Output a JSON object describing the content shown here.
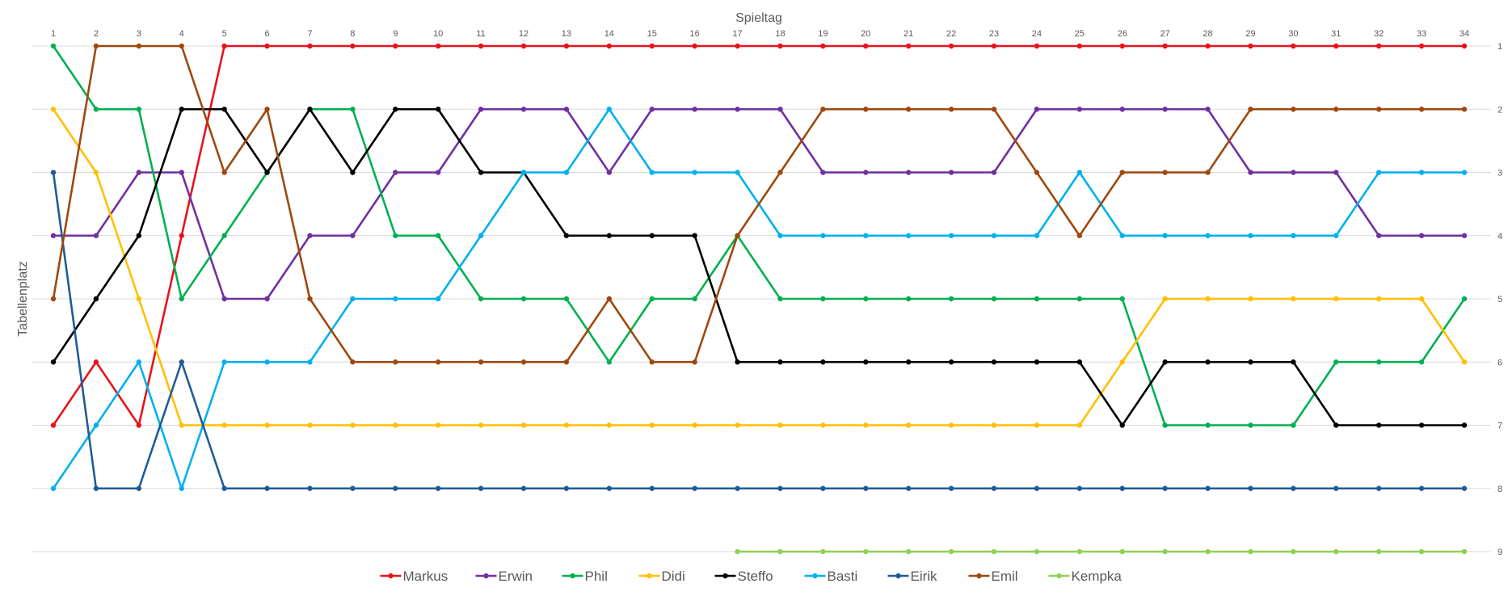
{
  "chart_data": {
    "type": "line",
    "title": "",
    "xlabel": "Spieltag",
    "ylabel": "Tabellenplatz",
    "x": [
      1,
      2,
      3,
      4,
      5,
      6,
      7,
      8,
      9,
      10,
      11,
      12,
      13,
      14,
      15,
      16,
      17,
      18,
      19,
      20,
      21,
      22,
      23,
      24,
      25,
      26,
      27,
      28,
      29,
      30,
      31,
      32,
      33,
      34
    ],
    "xlim": [
      1,
      34
    ],
    "ylim": [
      1,
      9
    ],
    "y_reversed": true,
    "x_axis_position": "top",
    "y_tick_position": "right",
    "grid": true,
    "legend_position": "bottom",
    "series": [
      {
        "name": "Markus",
        "color": "#e8121b",
        "values": [
          7,
          6,
          7,
          4,
          1,
          1,
          1,
          1,
          1,
          1,
          1,
          1,
          1,
          1,
          1,
          1,
          1,
          1,
          1,
          1,
          1,
          1,
          1,
          1,
          1,
          1,
          1,
          1,
          1,
          1,
          1,
          1,
          1,
          1
        ]
      },
      {
        "name": "Erwin",
        "color": "#7030a0",
        "values": [
          4,
          4,
          3,
          3,
          5,
          5,
          4,
          4,
          3,
          3,
          2,
          2,
          2,
          3,
          2,
          2,
          2,
          2,
          3,
          3,
          3,
          3,
          3,
          2,
          2,
          2,
          2,
          2,
          3,
          3,
          3,
          4,
          4,
          4
        ]
      },
      {
        "name": "Phil",
        "color": "#00b050",
        "values": [
          1,
          2,
          2,
          5,
          4,
          3,
          2,
          2,
          4,
          4,
          5,
          5,
          5,
          6,
          5,
          5,
          4,
          5,
          5,
          5,
          5,
          5,
          5,
          5,
          5,
          5,
          7,
          7,
          7,
          7,
          6,
          6,
          6,
          5
        ]
      },
      {
        "name": "Didi",
        "color": "#ffc000",
        "values": [
          2,
          3,
          5,
          7,
          7,
          7,
          7,
          7,
          7,
          7,
          7,
          7,
          7,
          7,
          7,
          7,
          7,
          7,
          7,
          7,
          7,
          7,
          7,
          7,
          7,
          6,
          5,
          5,
          5,
          5,
          5,
          5,
          5,
          6
        ]
      },
      {
        "name": "Steffo",
        "color": "#000000",
        "values": [
          6,
          5,
          4,
          2,
          2,
          3,
          2,
          3,
          2,
          2,
          3,
          3,
          4,
          4,
          4,
          4,
          6,
          6,
          6,
          6,
          6,
          6,
          6,
          6,
          6,
          7,
          6,
          6,
          6,
          6,
          7,
          7,
          7,
          7
        ]
      },
      {
        "name": "Basti",
        "color": "#00b0f0",
        "values": [
          8,
          7,
          6,
          8,
          6,
          6,
          6,
          5,
          5,
          5,
          4,
          3,
          3,
          2,
          3,
          3,
          3,
          4,
          4,
          4,
          4,
          4,
          4,
          4,
          3,
          4,
          4,
          4,
          4,
          4,
          4,
          3,
          3,
          3
        ]
      },
      {
        "name": "Eirik",
        "color": "#1f5c99",
        "values": [
          3,
          8,
          8,
          6,
          8,
          8,
          8,
          8,
          8,
          8,
          8,
          8,
          8,
          8,
          8,
          8,
          8,
          8,
          8,
          8,
          8,
          8,
          8,
          8,
          8,
          8,
          8,
          8,
          8,
          8,
          8,
          8,
          8,
          8
        ]
      },
      {
        "name": "Emil",
        "color": "#9e480e",
        "values": [
          5,
          1,
          1,
          1,
          3,
          2,
          5,
          6,
          6,
          6,
          6,
          6,
          6,
          5,
          6,
          6,
          4,
          3,
          2,
          2,
          2,
          2,
          2,
          3,
          4,
          3,
          3,
          3,
          2,
          2,
          2,
          2,
          2,
          2
        ]
      },
      {
        "name": "Kempka",
        "color": "#92d050",
        "values": [
          null,
          null,
          null,
          null,
          null,
          null,
          null,
          null,
          null,
          null,
          null,
          null,
          null,
          null,
          null,
          null,
          9,
          9,
          9,
          9,
          9,
          9,
          9,
          9,
          9,
          9,
          9,
          9,
          9,
          9,
          9,
          9,
          9,
          9
        ]
      }
    ],
    "y_ticks": [
      "1",
      "2",
      "3",
      "4",
      "5",
      "6",
      "7",
      "8",
      "9"
    ]
  }
}
